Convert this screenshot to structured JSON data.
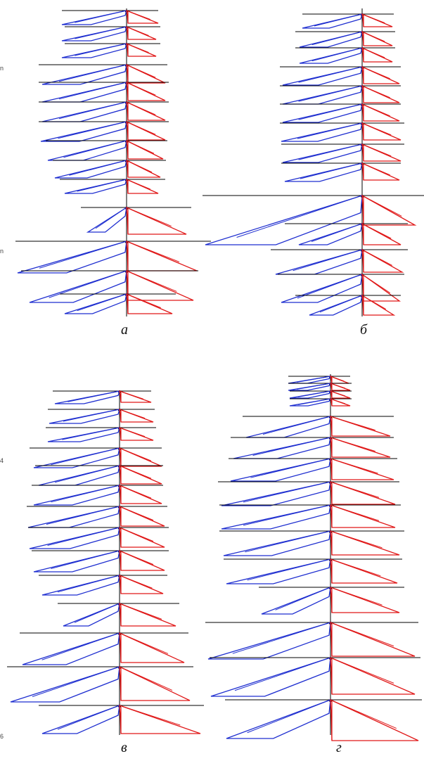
{
  "panels": [
    {
      "id": "a",
      "caption": "а"
    },
    {
      "id": "b",
      "caption": "б"
    },
    {
      "id": "v",
      "caption": "в"
    },
    {
      "id": "g",
      "caption": "г"
    }
  ],
  "side_marks": [
    "n",
    "n",
    "4",
    "6"
  ],
  "colors": {
    "axis": "#000000",
    "left_polygon": "#1f2fd0",
    "right_polygon": "#e01818"
  }
}
